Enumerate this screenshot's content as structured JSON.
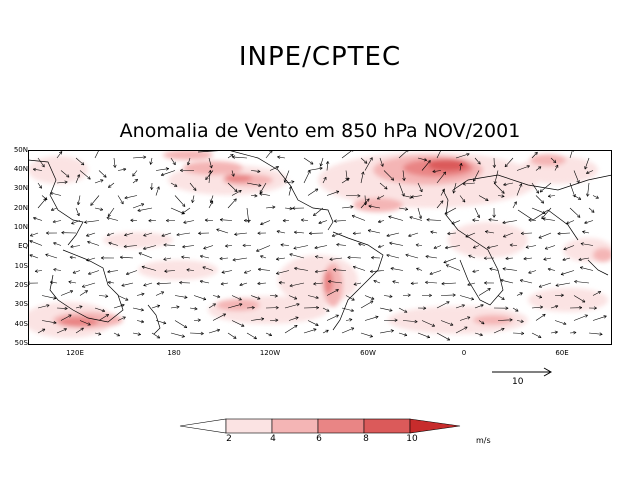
{
  "org_title": "INPE/CPTEC",
  "map_title": "Anomalia de Vento em 850 hPa NOV/2001",
  "lat_labels": [
    "50N",
    "40N",
    "30N",
    "20N",
    "10N",
    "EQ",
    "10S",
    "20S",
    "30S",
    "40S",
    "50S"
  ],
  "lon_labels": [
    "120E",
    "180",
    "120W",
    "60W",
    "0",
    "60E"
  ],
  "reference_vector": {
    "label": "10",
    "magnitude": 10
  },
  "color_scale": {
    "ticks": [
      "2",
      "4",
      "6",
      "8",
      "10"
    ],
    "unit": "m/s",
    "colors": [
      "#ffffff",
      "#fbe3e3",
      "#f4b5b5",
      "#e98585",
      "#db5a5a",
      "#c72c2c"
    ]
  }
}
